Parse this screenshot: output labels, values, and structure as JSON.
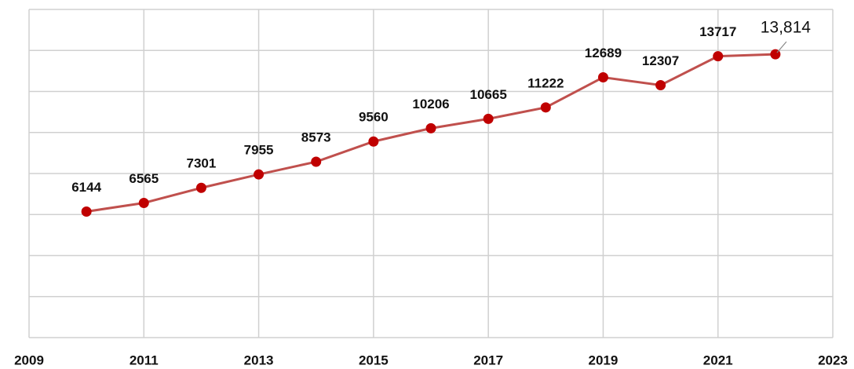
{
  "chart_data": {
    "type": "line",
    "x": [
      2010,
      2011,
      2012,
      2013,
      2014,
      2015,
      2016,
      2017,
      2018,
      2019,
      2020,
      2021,
      2022
    ],
    "series": [
      {
        "color": "#c0504d",
        "marker_color": "#c00000",
        "values": [
          6144,
          6565,
          7301,
          7955,
          8573,
          9560,
          10206,
          10665,
          11222,
          12689,
          12307,
          13717,
          13814
        ],
        "value_labels": [
          "6144",
          "6565",
          "7301",
          "7955",
          "8573",
          "9560",
          "10206",
          "10665",
          "11222",
          "12689",
          "12307",
          "13717",
          "13,814"
        ]
      }
    ],
    "xlim": [
      2009,
      2023
    ],
    "xticks": [
      2009,
      2011,
      2013,
      2015,
      2017,
      2019,
      2021,
      2023
    ],
    "ylim": [
      0,
      16000
    ],
    "yticks": [
      0,
      2000,
      4000,
      6000,
      8000,
      10000,
      12000,
      14000,
      16000
    ],
    "grid": true
  }
}
